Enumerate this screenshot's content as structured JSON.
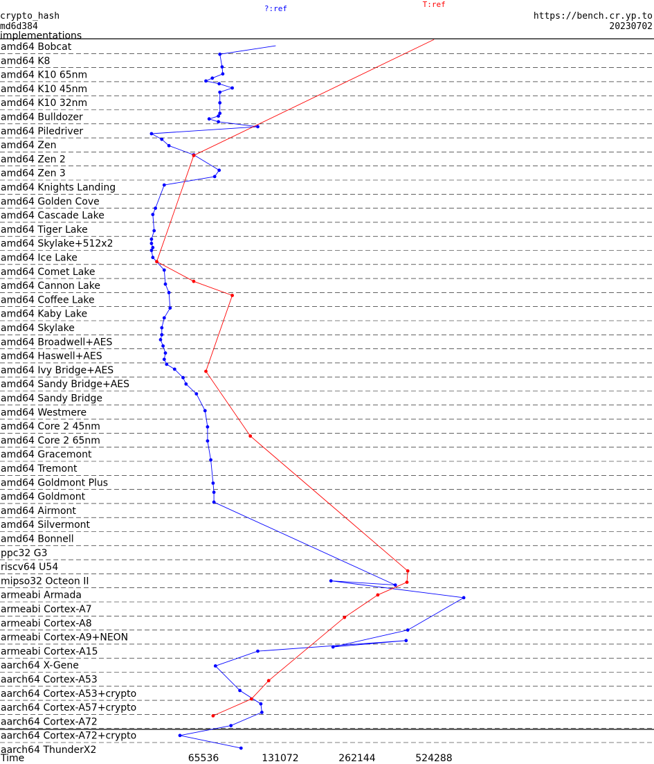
{
  "header": {
    "left_lines": [
      "crypto_hash",
      "md6d384",
      "implementations"
    ],
    "right_lines": [
      "https://bench.cr.yp.to",
      "20230702"
    ]
  },
  "chart_data": {
    "type": "line",
    "x_axis": {
      "label": "Time",
      "scale": "log2",
      "ticks": [
        65536,
        131072,
        262144,
        524288
      ],
      "tick_labels": [
        "65536",
        "131072",
        "262144",
        "524288"
      ]
    },
    "top_labels": [
      "?:ref",
      "T:ref"
    ],
    "categories": [
      "amd64 Bobcat",
      "amd64 K8",
      "amd64 K10 65nm",
      "amd64 K10 45nm",
      "amd64 K10 32nm",
      "amd64 Bulldozer",
      "amd64 Piledriver",
      "amd64 Zen",
      "amd64 Zen 2",
      "amd64 Zen 3",
      "amd64 Knights Landing",
      "amd64 Golden Cove",
      "amd64 Cascade Lake",
      "amd64 Tiger Lake",
      "amd64 Skylake+512x2",
      "amd64 Ice Lake",
      "amd64 Comet Lake",
      "amd64 Cannon Lake",
      "amd64 Coffee Lake",
      "amd64 Kaby Lake",
      "amd64 Skylake",
      "amd64 Broadwell+AES",
      "amd64 Haswell+AES",
      "amd64 Ivy Bridge+AES",
      "amd64 Sandy Bridge+AES",
      "amd64 Sandy Bridge",
      "amd64 Westmere",
      "amd64 Core 2 45nm",
      "amd64 Core 2 65nm",
      "amd64 Gracemont",
      "amd64 Tremont",
      "amd64 Goldmont Plus",
      "amd64 Goldmont",
      "amd64 Airmont",
      "amd64 Silvermont",
      "amd64 Bonnell",
      "ppc32 G3",
      "riscv64 U54",
      "mipso32 Octeon II",
      "armeabi Armada",
      "armeabi Cortex-A7",
      "armeabi Cortex-A8",
      "armeabi Cortex-A9+NEON",
      "armeabi Cortex-A15",
      "aarch64 X-Gene",
      "aarch64 Cortex-A53",
      "aarch64 Cortex-A53+crypto",
      "aarch64 Cortex-A57+crypto",
      "aarch64 Cortex-A72",
      "aarch64 Cortex-A72+crypto",
      "aarch64 ThunderX2"
    ],
    "series": [
      {
        "name": "?:ref",
        "color": "#0000ff",
        "points": [
          [
            125800,
            0.45
          ],
          [
            76000,
            1.05
          ],
          [
            77500,
            1.95
          ],
          [
            78000,
            2.45
          ],
          [
            71000,
            2.75
          ],
          [
            67000,
            2.95
          ],
          [
            75500,
            3.15
          ],
          [
            85000,
            3.45
          ],
          [
            76000,
            3.75
          ],
          [
            76000,
            4.5
          ],
          [
            76000,
            5.25
          ],
          [
            75000,
            5.45
          ],
          [
            69000,
            5.65
          ],
          [
            75000,
            5.85
          ],
          [
            107000,
            6.2
          ],
          [
            41000,
            6.7
          ],
          [
            45000,
            7.1
          ],
          [
            48000,
            7.55
          ],
          [
            60000,
            8.2
          ],
          [
            75500,
            9.3
          ],
          [
            72500,
            9.75
          ],
          [
            46000,
            10.35
          ],
          [
            42500,
            12.0
          ],
          [
            41500,
            12.45
          ],
          [
            42000,
            13.6
          ],
          [
            41000,
            14.2
          ],
          [
            41000,
            14.5
          ],
          [
            41500,
            14.8
          ],
          [
            41000,
            15.0
          ],
          [
            41500,
            15.5
          ],
          [
            46000,
            16.4
          ],
          [
            46500,
            17.4
          ],
          [
            48000,
            18.0
          ],
          [
            48500,
            19.1
          ],
          [
            46000,
            19.8
          ],
          [
            45000,
            20.5
          ],
          [
            45000,
            21.0
          ],
          [
            44500,
            21.35
          ],
          [
            45500,
            21.8
          ],
          [
            46500,
            22.3
          ],
          [
            46000,
            22.75
          ],
          [
            47000,
            23.1
          ],
          [
            50500,
            23.45
          ],
          [
            54500,
            24.05
          ],
          [
            56000,
            24.5
          ],
          [
            61500,
            25.2
          ],
          [
            66500,
            26.4
          ],
          [
            68000,
            27.55
          ],
          [
            68000,
            28.55
          ],
          [
            70000,
            29.9
          ],
          [
            71500,
            31.55
          ],
          [
            72000,
            32.2
          ],
          [
            72000,
            32.9
          ],
          [
            370000,
            38.8
          ],
          [
            207000,
            38.5
          ],
          [
            686000,
            39.7
          ],
          [
            414000,
            42.0
          ],
          [
            211000,
            43.2
          ],
          [
            408000,
            42.75
          ],
          [
            107000,
            43.5
          ],
          [
            73000,
            44.55
          ],
          [
            91000,
            46.3
          ],
          [
            110000,
            47.25
          ],
          [
            111000,
            47.85
          ],
          [
            84000,
            48.8
          ],
          [
            53000,
            49.5
          ],
          [
            92000,
            50.4
          ]
        ]
      },
      {
        "name": "T:ref",
        "color": "#ff0000",
        "points": [
          [
            525000,
            0.0
          ],
          [
            60000,
            8.25
          ],
          [
            43000,
            15.8
          ],
          [
            60000,
            17.2
          ],
          [
            85000,
            18.2
          ],
          [
            67000,
            23.6
          ],
          [
            100000,
            28.2
          ],
          [
            414000,
            37.8
          ],
          [
            411000,
            38.6
          ],
          [
            316000,
            39.5
          ],
          [
            234000,
            41.1
          ],
          [
            118000,
            45.6
          ],
          [
            101000,
            46.9
          ],
          [
            71500,
            48.1
          ]
        ]
      }
    ]
  }
}
